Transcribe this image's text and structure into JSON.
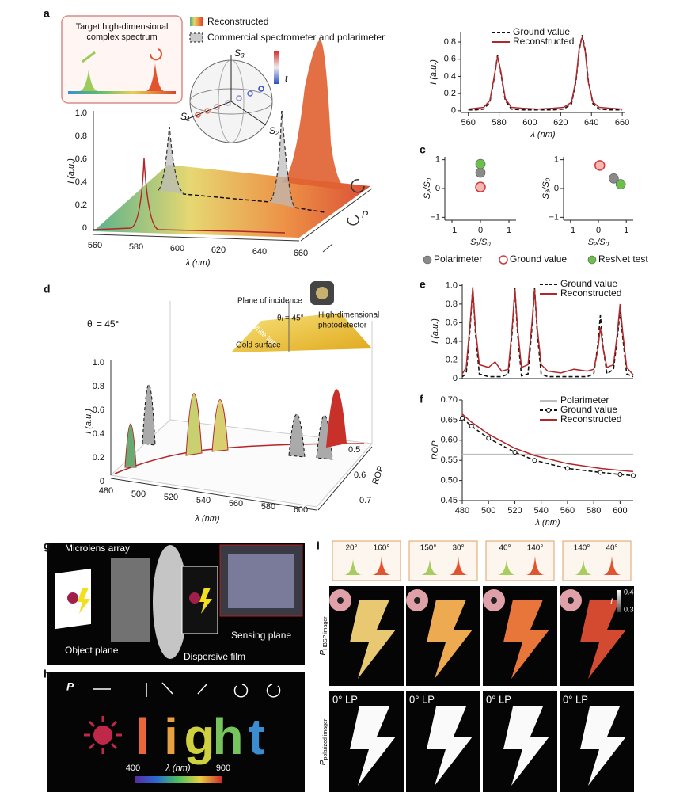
{
  "chart_data": [
    {
      "type": "line",
      "xlabel": "λ (nm)",
      "ylabel": "I (a.u.)",
      "legend": "upper center",
      "x": [
        560,
        565,
        570,
        574,
        577,
        579,
        581,
        584,
        588,
        595,
        605,
        615,
        622,
        627,
        630,
        632,
        634,
        636,
        638,
        641,
        645,
        652,
        660
      ],
      "xlim": [
        555,
        662
      ],
      "xticks": [
        560,
        580,
        600,
        620,
        640,
        660
      ],
      "ylim": [
        -0.02,
        0.92
      ],
      "yticks": [
        0,
        0.2,
        0.4,
        0.6,
        0.8
      ],
      "series": [
        {
          "name": "Ground value",
          "color": "#111111",
          "dash": true,
          "values": [
            0.01,
            0.01,
            0.02,
            0.1,
            0.4,
            0.65,
            0.45,
            0.12,
            0.02,
            0.01,
            0.01,
            0.01,
            0.02,
            0.08,
            0.35,
            0.7,
            0.88,
            0.7,
            0.35,
            0.08,
            0.02,
            0.01,
            0.01
          ]
        },
        {
          "name": "Reconstructed",
          "color": "#b3262a",
          "values": [
            0.02,
            0.03,
            0.04,
            0.12,
            0.42,
            0.63,
            0.47,
            0.14,
            0.04,
            0.03,
            0.02,
            0.03,
            0.04,
            0.1,
            0.37,
            0.72,
            0.86,
            0.68,
            0.33,
            0.1,
            0.04,
            0.03,
            0.02
          ]
        }
      ]
    },
    {
      "type": "scatter",
      "xlabel": "S₁/S₀",
      "ylabel": "S₂/S₀",
      "legend": "below",
      "xlim": [
        -1.25,
        1.25
      ],
      "xticks": [
        {
          "value": -1,
          "label": "−1"
        },
        0,
        1
      ],
      "ylim": [
        -1.1,
        1.1
      ],
      "yticks": [
        {
          "value": -1,
          "label": "−1"
        },
        0,
        1
      ],
      "series": [
        {
          "name": "Polarimeter",
          "color": "#8a8a8a",
          "x": [
            0
          ],
          "values": [
            0.55
          ]
        },
        {
          "name": "Ground value",
          "color": "#d0393d",
          "hollow": true,
          "x": [
            0
          ],
          "values": [
            0.05
          ]
        },
        {
          "name": "ResNet test",
          "color": "#6cbf4a",
          "x": [
            0
          ],
          "values": [
            0.85
          ]
        }
      ]
    },
    {
      "type": "scatter",
      "xlabel": "S₂/S₀",
      "ylabel": "S₃/S₀",
      "xlim": [
        -1.25,
        1.25
      ],
      "xticks": [
        {
          "value": -1,
          "label": "−1"
        },
        0,
        1
      ],
      "ylim": [
        -1.1,
        1.1
      ],
      "yticks": [
        {
          "value": -1,
          "label": "−1"
        },
        0,
        1
      ],
      "series": [
        {
          "color": "#8a8a8a",
          "x": [
            0.55
          ],
          "values": [
            0.35
          ]
        },
        {
          "color": "#d0393d",
          "hollow": true,
          "x": [
            0.05
          ],
          "values": [
            0.8
          ]
        },
        {
          "color": "#6cbf4a",
          "x": [
            0.8
          ],
          "values": [
            0.15
          ]
        }
      ]
    },
    {
      "type": "line",
      "ylabel": "I (a.u.)",
      "legend": "upper right",
      "x": [
        480,
        483,
        486,
        488,
        490,
        493,
        500,
        505,
        510,
        515,
        518,
        520,
        522,
        525,
        530,
        533,
        535,
        537,
        540,
        545,
        555,
        565,
        575,
        580,
        583,
        585,
        587,
        590,
        595,
        598,
        600,
        602,
        605,
        610
      ],
      "xlim": [
        480,
        610
      ],
      "ylim": [
        0,
        1.02
      ],
      "yticks": [
        0,
        0.2,
        0.4,
        0.6,
        0.8,
        {
          "value": 1,
          "label": "1.0"
        }
      ],
      "series": [
        {
          "name": "Ground value",
          "color": "#111111",
          "dash": true,
          "values": [
            0.02,
            0.05,
            0.55,
            0.98,
            0.5,
            0.05,
            0.02,
            0.02,
            0.02,
            0.05,
            0.5,
            0.97,
            0.5,
            0.03,
            0.05,
            0.55,
            0.97,
            0.5,
            0.05,
            0.02,
            0.02,
            0.02,
            0.02,
            0.05,
            0.35,
            0.68,
            0.35,
            0.05,
            0.1,
            0.45,
            0.72,
            0.45,
            0.05,
            0.02
          ]
        },
        {
          "name": "Reconstructed",
          "color": "#b3262a",
          "values": [
            0.05,
            0.12,
            0.6,
            0.97,
            0.55,
            0.15,
            0.12,
            0.18,
            0.08,
            0.1,
            0.55,
            0.96,
            0.55,
            0.12,
            0.15,
            0.6,
            0.96,
            0.55,
            0.15,
            0.08,
            0.06,
            0.1,
            0.08,
            0.1,
            0.3,
            0.55,
            0.33,
            0.12,
            0.15,
            0.5,
            0.8,
            0.5,
            0.12,
            0.04
          ]
        }
      ]
    },
    {
      "type": "line",
      "xlabel": "λ (nm)",
      "ylabel": "ROP",
      "legend": "upper right",
      "x": [
        480,
        487,
        500,
        520,
        535,
        560,
        585,
        600,
        610
      ],
      "xlim": [
        480,
        610
      ],
      "xticks": [
        480,
        500,
        520,
        540,
        560,
        580,
        600
      ],
      "ylim": [
        0.45,
        0.7
      ],
      "yticks": [
        {
          "value": 0.45,
          "label": "0.45"
        },
        {
          "value": 0.5,
          "label": "0.50"
        },
        {
          "value": 0.55,
          "label": "0.55"
        },
        {
          "value": 0.6,
          "label": "0.60"
        },
        {
          "value": 0.65,
          "label": "0.65"
        },
        {
          "value": 0.7,
          "label": "0.70"
        }
      ],
      "series": [
        {
          "name": "Polarimeter",
          "color": "#bdbdbd",
          "values": [
            0.565,
            0.565,
            0.565,
            0.565,
            0.565,
            0.565,
            0.565,
            0.565,
            0.565
          ]
        },
        {
          "name": "Ground value",
          "color": "#111111",
          "dash": true,
          "markers": true,
          "values": [
            0.655,
            0.635,
            0.605,
            0.57,
            0.55,
            0.53,
            0.52,
            0.515,
            0.512
          ]
        },
        {
          "name": "Reconstructed",
          "color": "#b3262a",
          "values": [
            0.665,
            0.645,
            0.615,
            0.58,
            0.562,
            0.542,
            0.53,
            0.525,
            0.522
          ]
        }
      ]
    }
  ],
  "figure": {
    "panel_labels": [
      "a",
      "c",
      "d",
      "e",
      "f",
      "g",
      "h",
      "i"
    ],
    "a": {
      "inset_title": [
        "Target high-dimensional",
        "complex spectrum"
      ],
      "legend": [
        "Reconstructed",
        "Commercial spectrometer and polarimeter"
      ],
      "sphere": [
        "S₃",
        "S₁",
        "S₂",
        "t"
      ],
      "ylabel": "I (a.u.)",
      "xlabel": "λ (nm)",
      "yticks": [
        "1.0",
        "0.8",
        "0.6",
        "0.4",
        "0.2",
        "0"
      ],
      "xticks": [
        "560",
        "580",
        "600",
        "620",
        "640",
        "660"
      ],
      "p": "P"
    },
    "d": {
      "theta": "θᵢ = 45°",
      "inset": [
        "Plane of incidence",
        "θᵢ = 45°",
        "White light",
        "Gold surface",
        "High-dimensional",
        "photodetector"
      ],
      "ylabel": "I (a.u.)",
      "xlabel": "λ (nm)",
      "yticks": [
        "1.0",
        "0.8",
        "0.6",
        "0.4",
        "0.2",
        "0"
      ],
      "xticks": [
        "480",
        "500",
        "520",
        "540",
        "560",
        "580",
        "600"
      ],
      "rop_ticks": [
        "0.5",
        "0.6",
        "0.7"
      ],
      "rop": "ROP"
    },
    "g": [
      "Microlens array",
      "Object plane",
      "Dispersive film",
      "Sensing plane"
    ],
    "h": {
      "p": "P",
      "letters": [
        "l",
        "i",
        "g",
        "h",
        "t"
      ],
      "colorbar": [
        "400",
        "λ (nm)",
        "900"
      ]
    },
    "i": {
      "angles": [
        [
          "20°",
          "160°"
        ],
        [
          "150°",
          "30°"
        ],
        [
          "40°",
          "140°"
        ],
        [
          "140°",
          "40°"
        ]
      ],
      "colorbar": [
        "0.4",
        "0.3"
      ],
      "intensity": "I",
      "row1": [
        "P",
        "HBSP imager"
      ],
      "row2": [
        "P",
        "polarized imager"
      ],
      "lp": [
        "0° LP",
        "0° LP",
        "0° LP",
        "0° LP"
      ]
    }
  }
}
